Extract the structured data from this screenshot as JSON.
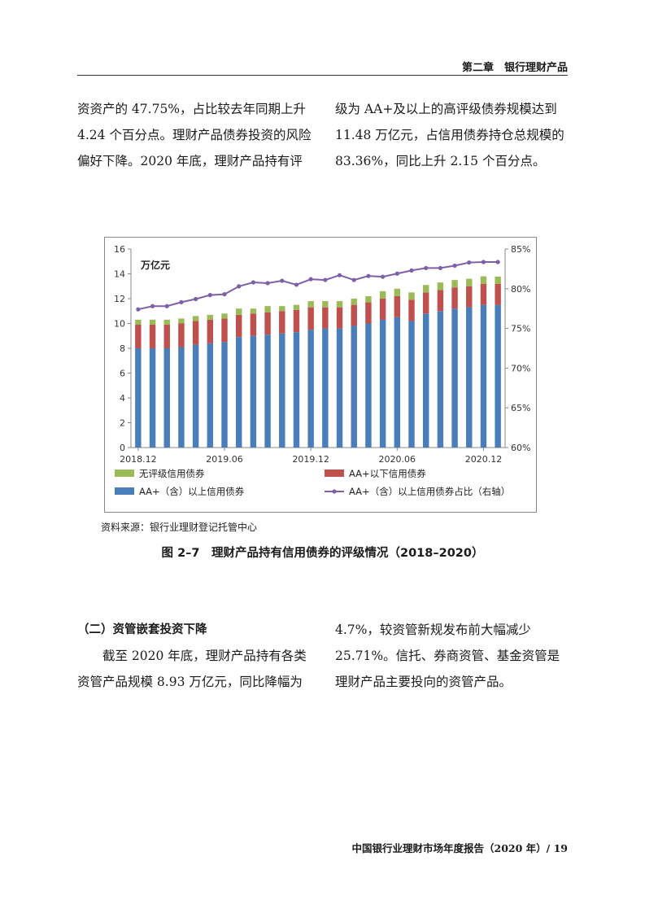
{
  "header": {
    "chapter": "第二章　银行理财产品"
  },
  "left_top": "资资产的 47.75%，占比较去年同期上升 4.24 个百分点。理财产品债券投资的风险偏好下降。2020 年底，理财产品持有评",
  "right_top": "级为 AA+及以上的高评级债券规模达到 11.48 万亿元，占信用债券持仓总规模的 83.36%，同比上升 2.15 个百分点。",
  "chart_data": {
    "type": "bar",
    "unit_label": "万亿元",
    "x_tick_labels": [
      "2018.12",
      "2019.06",
      "2019.12",
      "2020.06",
      "2020.12"
    ],
    "x_tick_index": [
      0,
      6,
      12,
      18,
      24
    ],
    "ylim": [
      0,
      16
    ],
    "y_ticks": [
      "0",
      "2",
      "4",
      "6",
      "8",
      "10",
      "12",
      "14",
      "16"
    ],
    "y2lim": [
      60,
      85
    ],
    "y2_ticks": [
      "60%",
      "65%",
      "70%",
      "75%",
      "80%",
      "85%"
    ],
    "series": [
      {
        "name": "AA+（含）以上信用债券",
        "color": "#4a7ebb",
        "values": [
          8.0,
          8.0,
          8.0,
          8.1,
          8.3,
          8.4,
          8.5,
          8.9,
          9.0,
          9.1,
          9.2,
          9.3,
          9.5,
          9.6,
          9.6,
          9.8,
          10.0,
          10.3,
          10.5,
          10.2,
          10.8,
          11.0,
          11.2,
          11.3,
          11.5,
          11.48
        ]
      },
      {
        "name": "AA+以下信用债券",
        "color": "#c0504d",
        "values": [
          1.9,
          1.9,
          1.9,
          1.9,
          1.9,
          1.9,
          1.9,
          1.8,
          1.8,
          1.8,
          1.8,
          1.8,
          1.8,
          1.7,
          1.7,
          1.7,
          1.7,
          1.7,
          1.7,
          1.7,
          1.7,
          1.7,
          1.7,
          1.7,
          1.7,
          1.7
        ]
      },
      {
        "name": "无评级信用债券",
        "color": "#9bbb59",
        "values": [
          0.4,
          0.4,
          0.4,
          0.4,
          0.4,
          0.4,
          0.4,
          0.5,
          0.4,
          0.5,
          0.4,
          0.4,
          0.5,
          0.5,
          0.5,
          0.5,
          0.5,
          0.6,
          0.6,
          0.6,
          0.6,
          0.6,
          0.6,
          0.6,
          0.6,
          0.6
        ]
      },
      {
        "name": "AA+（含）以上信用债券占比（右轴）",
        "color": "#7f5fa8",
        "axis": "right",
        "type": "line",
        "values": [
          77.4,
          77.8,
          77.8,
          78.3,
          78.7,
          79.2,
          79.3,
          80.3,
          80.8,
          80.7,
          81.0,
          80.5,
          81.2,
          81.1,
          81.7,
          81.1,
          81.6,
          81.5,
          81.9,
          82.3,
          82.6,
          82.6,
          82.9,
          83.3,
          83.36,
          83.36
        ]
      }
    ],
    "legend": "bottom"
  },
  "source": "资料来源：银行业理财登记托管中心",
  "caption": "图 2–7　理财产品持有信用债券的评级情况（2018–2020）",
  "subheading": "（二）资管嵌套投资下降",
  "left_bottom": "截至 2020 年底，理财产品持有各类资管产品规模 8.93 万亿元，同比降幅为",
  "right_bottom": "4.7%，较资管新规发布前大幅减少 25.71%。信托、券商资管、基金资管是理财产品主要投向的资管产品。",
  "footer": "中国银行业理财市场年度报告（2020 年）/ 19"
}
